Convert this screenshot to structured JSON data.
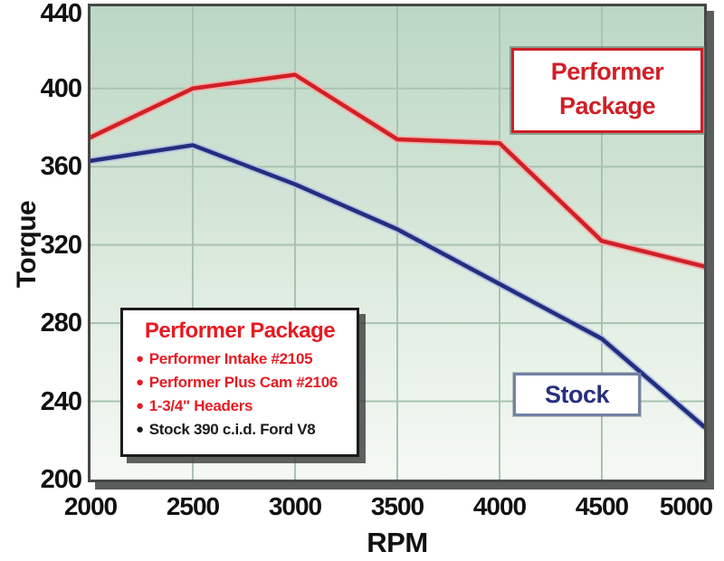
{
  "chart_data": {
    "type": "line",
    "x": [
      2000,
      2500,
      3000,
      3500,
      4000,
      4500,
      5000
    ],
    "series": [
      {
        "name": "Performer Package",
        "color": "#cf2127",
        "halo": "#f0b3ad",
        "values": [
          375,
          400,
          407,
          374,
          372,
          322,
          309
        ]
      },
      {
        "name": "Stock",
        "color": "#232e7d",
        "halo": "#b7c2e2",
        "values": [
          363,
          371,
          351,
          328,
          300,
          272,
          227
        ]
      }
    ],
    "title": "",
    "xlabel": "RPM",
    "ylabel": "Torque",
    "xlim": [
      2000,
      5000
    ],
    "ylim": [
      200,
      440
    ],
    "ytick_step": 40,
    "xtick_step": 500,
    "grid": true,
    "legend_position": "in-plot annotation boxes"
  },
  "axes": {
    "y_ticks": [
      "440",
      "400",
      "360",
      "320",
      "280",
      "240",
      "200"
    ],
    "x_ticks": [
      "2000",
      "2500",
      "3000",
      "3500",
      "4000",
      "4500",
      "5000"
    ],
    "xlabel": "RPM",
    "ylabel": "Torque"
  },
  "annotations": {
    "performer_label": {
      "line1": "Performer",
      "line2": "Package"
    },
    "stock_label": {
      "text": "Stock"
    }
  },
  "legend_box": {
    "title": "Performer Package",
    "items": [
      {
        "text": "Performer Intake #2105",
        "color": "#e51b23"
      },
      {
        "text": "Performer Plus Cam #2106",
        "color": "#e51b23"
      },
      {
        "text": "1-3/4\" Headers",
        "color": "#e51b23"
      },
      {
        "text": "Stock 390 c.i.d. Ford V8",
        "color": "#1a1a1a"
      }
    ]
  },
  "colors": {
    "performer_line": "#cf2127",
    "stock_line": "#232e7d",
    "plot_bg_top": "#bcd7c5",
    "plot_bg_bottom": "#f5f9f4",
    "gridline": "#a9c3b1",
    "border": "#474747",
    "shadow": "#484d49",
    "tick_text": "#111111"
  }
}
